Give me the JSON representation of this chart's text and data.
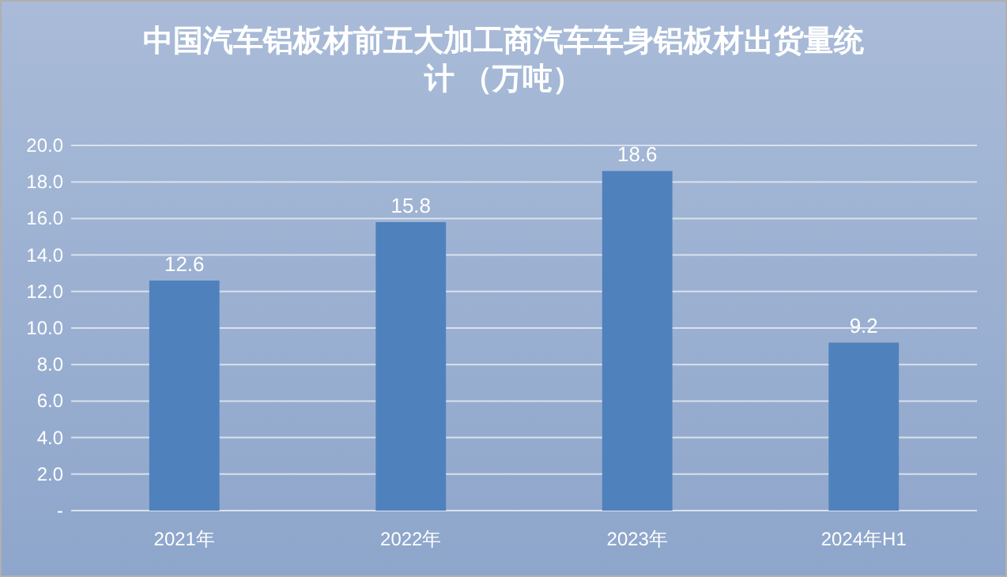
{
  "chart_data": {
    "type": "bar",
    "title": "中国汽车铝板材前五大加工商汽车车身铝板材出货量统计 （万吨）",
    "categories": [
      "2021年",
      "2022年",
      "2023年",
      "2024年H1"
    ],
    "values": [
      12.6,
      15.8,
      18.6,
      9.2
    ],
    "color": "#4f81bd",
    "ylim": [
      0,
      20
    ],
    "yticks": [
      {
        "value": 0,
        "label": "-"
      },
      {
        "value": 2,
        "label": "2.0"
      },
      {
        "value": 4,
        "label": "4.0"
      },
      {
        "value": 6,
        "label": "6.0"
      },
      {
        "value": 8,
        "label": "8.0"
      },
      {
        "value": 10,
        "label": "10.0"
      },
      {
        "value": 12,
        "label": "12.0"
      },
      {
        "value": 14,
        "label": "14.0"
      },
      {
        "value": 16,
        "label": "16.0"
      },
      {
        "value": 18,
        "label": "18.0"
      },
      {
        "value": 20,
        "label": "20.0"
      }
    ],
    "grid": "y",
    "data_labels": true
  }
}
